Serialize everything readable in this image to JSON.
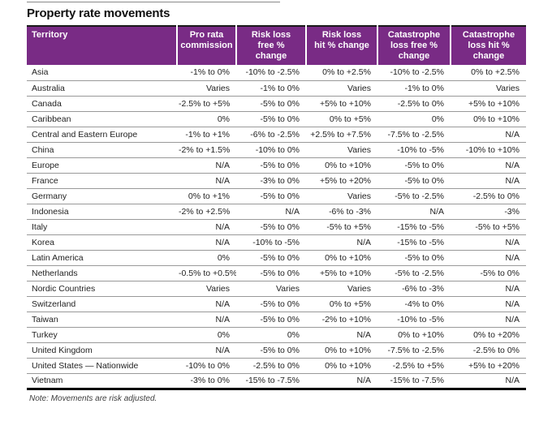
{
  "page": {
    "title": "Property rate movements",
    "note": "Note: Movements are risk adjusted."
  },
  "colors": {
    "header_bg": "#792b85",
    "header_text": "#ffffff",
    "row_divider": "#999999"
  },
  "table": {
    "columns": [
      {
        "label": "Territory",
        "lines": [
          "Territory"
        ]
      },
      {
        "label": "Pro rata commission",
        "lines": [
          "Pro rata",
          "commission"
        ]
      },
      {
        "label": "Risk loss free % change",
        "lines": [
          "Risk loss",
          "free %",
          "change"
        ]
      },
      {
        "label": "Risk loss hit % change",
        "lines": [
          "Risk loss",
          "hit % change"
        ]
      },
      {
        "label": "Catastrophe loss free % change",
        "lines": [
          "Catastrophe",
          "loss free %",
          "change"
        ]
      },
      {
        "label": "Catastrophe loss hit % change",
        "lines": [
          "Catastrophe",
          "loss hit %",
          "change"
        ]
      }
    ],
    "rows": [
      {
        "territory": "Asia",
        "values": [
          "-1% to 0%",
          "-10% to -2.5%",
          "0% to +2.5%",
          "-10% to -2.5%",
          "0% to +2.5%"
        ]
      },
      {
        "territory": "Australia",
        "values": [
          "Varies",
          "-1% to 0%",
          "Varies",
          "-1% to 0%",
          "Varies"
        ]
      },
      {
        "territory": "Canada",
        "values": [
          "-2.5% to +5%",
          "-5% to 0%",
          "+5% to +10%",
          "-2.5% to 0%",
          "+5% to +10%"
        ]
      },
      {
        "territory": "Caribbean",
        "values": [
          "0%",
          "-5% to 0%",
          "0% to +5%",
          "0%",
          "0% to +10%"
        ]
      },
      {
        "territory": "Central and Eastern Europe",
        "values": [
          "-1% to +1%",
          "-6% to -2.5%",
          "+2.5% to +7.5%",
          "-7.5% to -2.5%",
          "N/A"
        ]
      },
      {
        "territory": "China",
        "values": [
          "-2% to +1.5%",
          "-10% to 0%",
          "Varies",
          "-10% to -5%",
          "-10% to +10%"
        ]
      },
      {
        "territory": "Europe",
        "values": [
          "N/A",
          "-5% to 0%",
          "0% to +10%",
          "-5% to 0%",
          "N/A"
        ]
      },
      {
        "territory": "France",
        "values": [
          "N/A",
          "-3% to 0%",
          "+5% to +20%",
          "-5% to 0%",
          "N/A"
        ]
      },
      {
        "territory": "Germany",
        "values": [
          "0% to +1%",
          "-5% to 0%",
          "Varies",
          "-5% to -2.5%",
          "-2.5% to 0%"
        ]
      },
      {
        "territory": "Indonesia",
        "values": [
          "-2% to +2.5%",
          "N/A",
          "-6% to -3%",
          "N/A",
          "-3%"
        ]
      },
      {
        "territory": "Italy",
        "values": [
          "N/A",
          "-5% to 0%",
          "-5% to +5%",
          "-15% to -5%",
          "-5% to +5%"
        ]
      },
      {
        "territory": "Korea",
        "values": [
          "N/A",
          "-10% to -5%",
          "N/A",
          "-15% to -5%",
          "N/A"
        ]
      },
      {
        "territory": "Latin America",
        "values": [
          "0%",
          "-5% to 0%",
          "0% to +10%",
          "-5% to 0%",
          "N/A"
        ]
      },
      {
        "territory": "Netherlands",
        "values": [
          "-0.5% to +0.5%",
          "-5% to 0%",
          "+5% to +10%",
          "-5% to -2.5%",
          "-5% to 0%"
        ]
      },
      {
        "territory": "Nordic Countries",
        "values": [
          "Varies",
          "Varies",
          "Varies",
          "-6% to -3%",
          "N/A"
        ]
      },
      {
        "territory": "Switzerland",
        "values": [
          "N/A",
          "-5% to 0%",
          "0% to +5%",
          "-4% to 0%",
          "N/A"
        ]
      },
      {
        "territory": "Taiwan",
        "values": [
          "N/A",
          "-5% to 0%",
          "-2% to +10%",
          "-10% to -5%",
          "N/A"
        ]
      },
      {
        "territory": "Turkey",
        "values": [
          "0%",
          "0%",
          "N/A",
          "0% to +10%",
          "0% to +20%"
        ]
      },
      {
        "territory": "United Kingdom",
        "values": [
          "N/A",
          "-5% to 0%",
          "0% to +10%",
          "-7.5% to -2.5%",
          "-2.5% to 0%"
        ]
      },
      {
        "territory": "United States — Nationwide",
        "values": [
          "-10% to 0%",
          "-2.5% to 0%",
          "0% to +10%",
          "-2.5% to +5%",
          "+5% to +20%"
        ]
      },
      {
        "territory": "Vietnam",
        "values": [
          "-3% to 0%",
          "-15% to -7.5%",
          "N/A",
          "-15% to -7.5%",
          "N/A"
        ]
      }
    ]
  }
}
